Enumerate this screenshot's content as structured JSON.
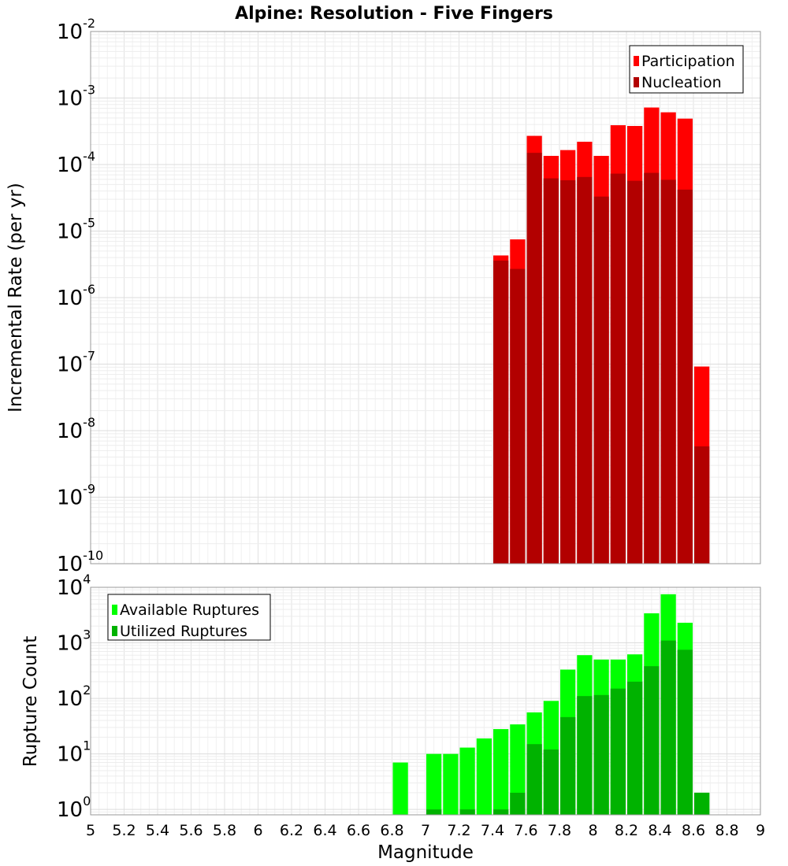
{
  "title": "Alpine: Resolution - Five Fingers",
  "chart_data": [
    {
      "type": "bar",
      "title": "Alpine: Resolution - Five Fingers",
      "xlabel": "Magnitude",
      "ylabel": "Incremental Rate (per yr)",
      "xlim": [
        5,
        9
      ],
      "ylim": [
        1e-10,
        0.01
      ],
      "yscale": "log",
      "grid": true,
      "legend_position": "top-right",
      "bin_width": 0.1,
      "x": [
        7.45,
        7.55,
        7.65,
        7.75,
        7.85,
        7.95,
        8.05,
        8.15,
        8.25,
        8.35,
        8.45,
        8.55,
        8.65
      ],
      "series": [
        {
          "name": "Participation",
          "color": "#ff0000",
          "values": [
            4.3e-06,
            7.5e-06,
            0.00027,
            0.000135,
            0.000165,
            0.00022,
            0.000135,
            0.00039,
            0.00038,
            0.00072,
            0.00061,
            0.00049,
            9.2e-08
          ]
        },
        {
          "name": "Nucleation",
          "color": "#b20000",
          "values": [
            3.6e-06,
            2.7e-06,
            0.00015,
            6.2e-05,
            5.8e-05,
            6.5e-05,
            3.3e-05,
            7.3e-05,
            5.7e-05,
            7.5e-05,
            5.9e-05,
            4.2e-05,
            5.8e-09
          ]
        }
      ]
    },
    {
      "type": "bar",
      "xlabel": "Magnitude",
      "ylabel": "Rupture Count",
      "xlim": [
        5,
        9
      ],
      "ylim": [
        0.8,
        10000.0
      ],
      "yscale": "log",
      "grid": true,
      "legend_position": "top-left",
      "bin_width": 0.1,
      "x": [
        6.85,
        7.05,
        7.15,
        7.25,
        7.35,
        7.45,
        7.55,
        7.65,
        7.75,
        7.85,
        7.95,
        8.05,
        8.15,
        8.25,
        8.35,
        8.45,
        8.55,
        8.65
      ],
      "series": [
        {
          "name": "Available Ruptures",
          "color": "#00ff00",
          "values": [
            7,
            10,
            10,
            13,
            19,
            28,
            34,
            56,
            90,
            330,
            600,
            500,
            500,
            620,
            3400,
            7500,
            2300,
            2
          ]
        },
        {
          "name": "Utilized Ruptures",
          "color": "#00b200",
          "values": [
            0,
            1,
            0,
            1,
            0,
            1,
            2,
            15,
            12,
            46,
            110,
            115,
            150,
            200,
            380,
            1100,
            750,
            2
          ]
        }
      ]
    }
  ],
  "x_ticks": [
    "5",
    "5.2",
    "5.4",
    "5.6",
    "5.8",
    "6",
    "6.2",
    "6.4",
    "6.6",
    "6.8",
    "7",
    "7.2",
    "7.4",
    "7.6",
    "7.8",
    "8",
    "8.2",
    "8.4",
    "8.6",
    "8.8",
    "9"
  ],
  "top_y_ticks": [
    {
      "base": "10",
      "exp": "-2"
    },
    {
      "base": "10",
      "exp": "-3"
    },
    {
      "base": "10",
      "exp": "-4"
    },
    {
      "base": "10",
      "exp": "-5"
    },
    {
      "base": "10",
      "exp": "-6"
    },
    {
      "base": "10",
      "exp": "-7"
    },
    {
      "base": "10",
      "exp": "-8"
    },
    {
      "base": "10",
      "exp": "-9"
    },
    {
      "base": "10",
      "exp": "-10"
    }
  ],
  "bottom_y_ticks": [
    {
      "base": "10",
      "exp": "4"
    },
    {
      "base": "10",
      "exp": "3"
    },
    {
      "base": "10",
      "exp": "2"
    },
    {
      "base": "10",
      "exp": "1"
    },
    {
      "base": "10",
      "exp": "0"
    }
  ]
}
